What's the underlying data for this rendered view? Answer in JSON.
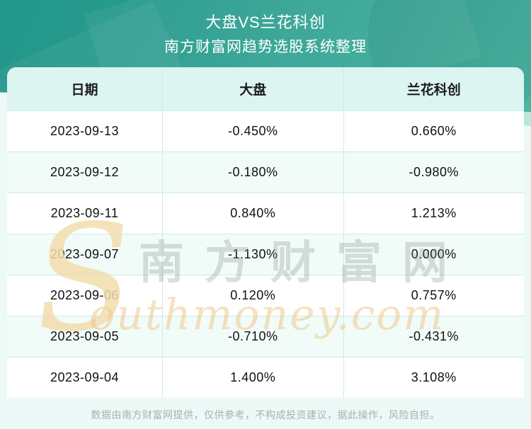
{
  "header": {
    "title": "大盘VS兰花科创",
    "subtitle": "南方财富网趋势选股系统整理"
  },
  "table": {
    "columns": [
      "日期",
      "大盘",
      "兰花科创"
    ],
    "rows": [
      [
        "2023-09-13",
        "-0.450%",
        "0.660%"
      ],
      [
        "2023-09-12",
        "-0.180%",
        "-0.980%"
      ],
      [
        "2023-09-11",
        "0.840%",
        "1.213%"
      ],
      [
        "2023-09-07",
        "-1.130%",
        "0.000%"
      ],
      [
        "2023-09-06",
        "0.120%",
        "0.757%"
      ],
      [
        "2023-09-05",
        "-0.710%",
        "-0.431%"
      ],
      [
        "2023-09-04",
        "1.400%",
        "3.108%"
      ]
    ]
  },
  "chart_data": {
    "type": "table",
    "title": "大盘VS兰花科创",
    "subtitle": "南方财富网趋势选股系统整理",
    "columns": [
      "日期",
      "大盘",
      "兰花科创"
    ],
    "categories": [
      "2023-09-13",
      "2023-09-12",
      "2023-09-11",
      "2023-09-07",
      "2023-09-06",
      "2023-09-05",
      "2023-09-04"
    ],
    "series": [
      {
        "name": "大盘",
        "values": [
          -0.45,
          -0.18,
          0.84,
          -1.13,
          0.12,
          -0.71,
          1.4
        ],
        "unit": "%"
      },
      {
        "name": "兰花科创",
        "values": [
          0.66,
          -0.98,
          1.213,
          0.0,
          0.757,
          -0.431,
          3.108
        ],
        "unit": "%"
      }
    ]
  },
  "watermark": {
    "initial": "S",
    "cjk_text": "南方财富网",
    "latin_text": "outhmoney.com"
  },
  "footer": {
    "disclaimer": "数据由南方财富网提供，仅供参考，不构成投资建议，据此操作，风险自担。"
  },
  "colors": {
    "banner_teal_dark": "#22968a",
    "banner_teal_light": "#4fb5a3",
    "page_bg": "#ecf9f6",
    "table_header_bg": "#ddf5f0",
    "row_alt_bg": "#f1fbf8",
    "row_bg": "#ffffff",
    "grid_border": "#cdebe5",
    "title_text": "#ffffff",
    "cell_text": "#111111",
    "footer_text": "#a6b2af",
    "watermark_gray": "#8f9a98",
    "watermark_gold": "#efc98e"
  }
}
